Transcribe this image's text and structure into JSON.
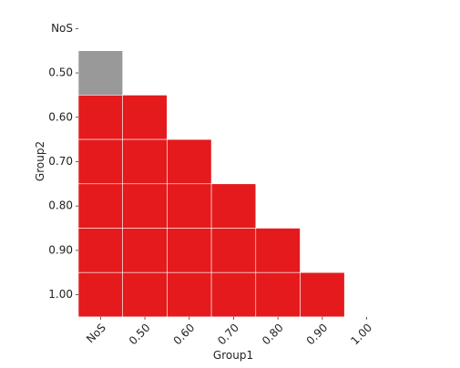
{
  "chart_data": {
    "type": "heatmap",
    "title": "",
    "xlabel": "Group1",
    "ylabel": "Group2",
    "x_categories": [
      "NoS",
      "0.50",
      "0.60",
      "0.70",
      "0.80",
      "0.90",
      "1.00"
    ],
    "y_categories": [
      "NoS",
      "0.50",
      "0.60",
      "0.70",
      "0.80",
      "0.90",
      "1.00"
    ],
    "cells": [
      {
        "x": "NoS",
        "y": "0.50",
        "status": "gray"
      },
      {
        "x": "NoS",
        "y": "0.60",
        "status": "red"
      },
      {
        "x": "0.50",
        "y": "0.60",
        "status": "red"
      },
      {
        "x": "NoS",
        "y": "0.70",
        "status": "red"
      },
      {
        "x": "0.50",
        "y": "0.70",
        "status": "red"
      },
      {
        "x": "0.60",
        "y": "0.70",
        "status": "red"
      },
      {
        "x": "NoS",
        "y": "0.80",
        "status": "red"
      },
      {
        "x": "0.50",
        "y": "0.80",
        "status": "red"
      },
      {
        "x": "0.60",
        "y": "0.80",
        "status": "red"
      },
      {
        "x": "0.70",
        "y": "0.80",
        "status": "red"
      },
      {
        "x": "NoS",
        "y": "0.90",
        "status": "red"
      },
      {
        "x": "0.50",
        "y": "0.90",
        "status": "red"
      },
      {
        "x": "0.60",
        "y": "0.90",
        "status": "red"
      },
      {
        "x": "0.70",
        "y": "0.90",
        "status": "red"
      },
      {
        "x": "0.80",
        "y": "0.90",
        "status": "red"
      },
      {
        "x": "NoS",
        "y": "1.00",
        "status": "red"
      },
      {
        "x": "0.50",
        "y": "1.00",
        "status": "red"
      },
      {
        "x": "0.60",
        "y": "1.00",
        "status": "red"
      },
      {
        "x": "0.70",
        "y": "1.00",
        "status": "red"
      },
      {
        "x": "0.80",
        "y": "1.00",
        "status": "red"
      },
      {
        "x": "0.90",
        "y": "1.00",
        "status": "red"
      }
    ],
    "colors": {
      "red": "#e41a1c",
      "gray": "#999999"
    },
    "grid": false,
    "legend": "none"
  }
}
